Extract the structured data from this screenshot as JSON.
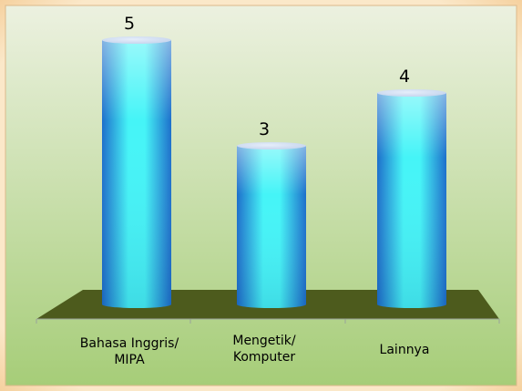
{
  "chart_data": {
    "type": "bar",
    "style": "3d-cylinder",
    "categories": [
      [
        "Bahasa Inggris/",
        "MIPA"
      ],
      [
        "Mengetik/",
        "Komputer"
      ],
      [
        "Lainnya"
      ]
    ],
    "values": [
      5,
      3,
      4
    ],
    "data_labels": [
      "5",
      "3",
      "4"
    ],
    "title": "",
    "xlabel": "",
    "ylabel": "",
    "ylim": [
      0,
      5
    ],
    "grid": false,
    "legend": "none"
  },
  "colors": {
    "frame_outer": "#f3c78d",
    "background_top": "#ecf1e0",
    "background_bottom": "#a6cd78",
    "floor": "#4d5b1d",
    "bar_light": "#45f4f7",
    "bar_dark": "#1d6fcb",
    "bar_cap": "#c2d2ec"
  }
}
